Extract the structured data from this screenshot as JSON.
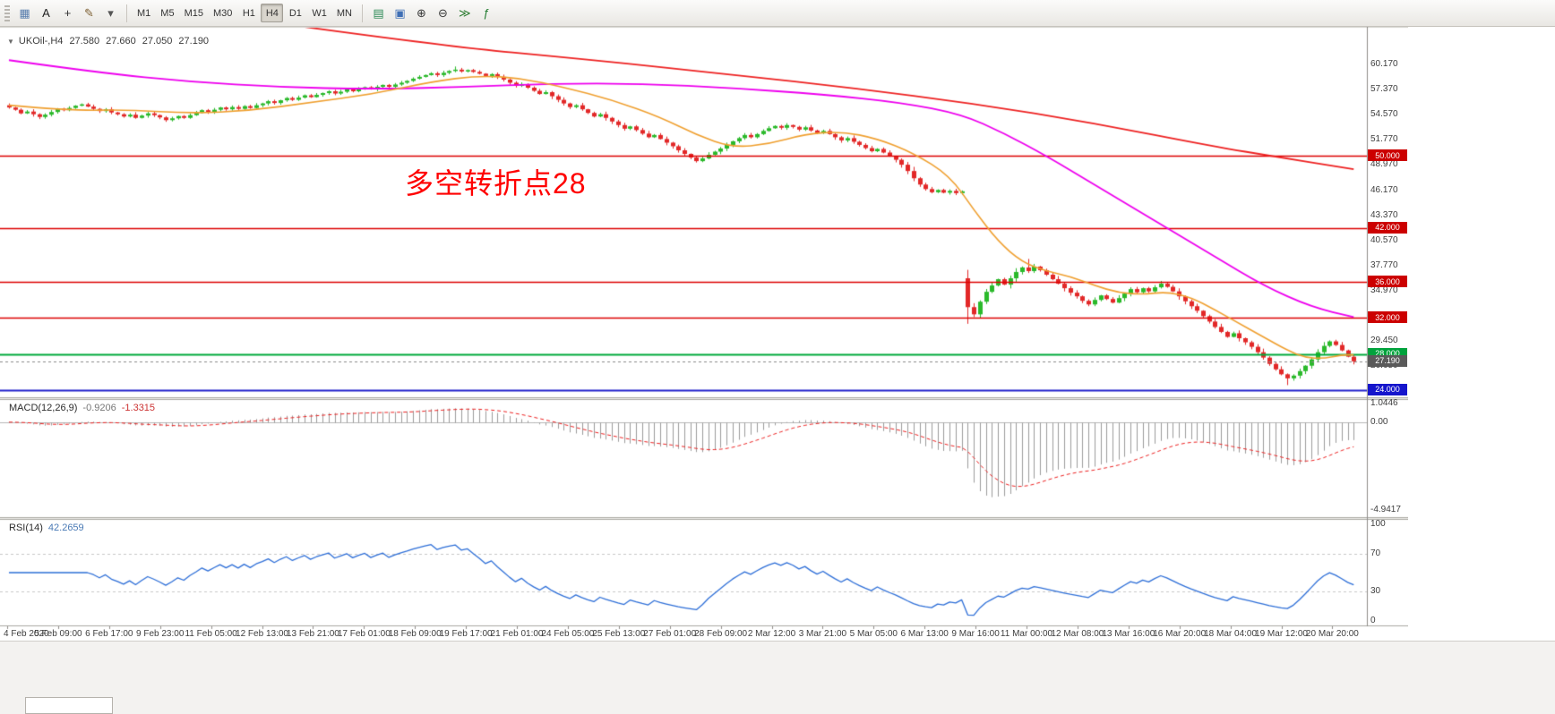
{
  "app": {
    "toolbar": {
      "left_icons": [
        {
          "name": "charts-list-icon",
          "glyph": "▦",
          "color": "#5a7fae"
        },
        {
          "name": "cursor-tool-icon",
          "glyph": "A",
          "color": "#1f1f1f"
        },
        {
          "name": "crosshair-tool-icon",
          "glyph": "+",
          "color": "#333333"
        },
        {
          "name": "draw-tools-icon",
          "glyph": "✎",
          "color": "#7a5c2e"
        },
        {
          "name": "dropdown-arrow-icon",
          "glyph": "▾",
          "color": "#555555"
        }
      ],
      "timeframes": [
        "M1",
        "M5",
        "M15",
        "M30",
        "H1",
        "H4",
        "D1",
        "W1",
        "MN"
      ],
      "active_timeframe": "H4",
      "right_icons": [
        {
          "name": "new-order-icon",
          "glyph": "▤",
          "color": "#2e8b57"
        },
        {
          "name": "tile-windows-icon",
          "glyph": "▣",
          "color": "#3f6fb5"
        },
        {
          "name": "zoom-in-icon",
          "glyph": "⊕",
          "color": "#3a3a3a"
        },
        {
          "name": "zoom-out-icon",
          "glyph": "⊖",
          "color": "#3a3a3a"
        },
        {
          "name": "auto-scroll-icon",
          "glyph": "≫",
          "color": "#2e7d32"
        },
        {
          "name": "indicators-icon",
          "glyph": "ƒ",
          "color": "#1f7a2e"
        }
      ]
    }
  },
  "chart": {
    "title": {
      "collapse_glyph": "▼",
      "symbol_period": "UKOil-,H4",
      "open": "27.580",
      "high": "27.660",
      "low": "27.050",
      "close": "27.190"
    },
    "annotation": {
      "text": "多空转折点28",
      "color": "#ff0000"
    },
    "price_axis": {
      "labels": [
        {
          "p": 60.17,
          "t": "60.170"
        },
        {
          "p": 57.37,
          "t": "57.370"
        },
        {
          "p": 54.57,
          "t": "54.570"
        },
        {
          "p": 51.77,
          "t": "51.770"
        },
        {
          "p": 48.97,
          "t": "48.970"
        },
        {
          "p": 46.17,
          "t": "46.170"
        },
        {
          "p": 43.37,
          "t": "43.370"
        },
        {
          "p": 40.57,
          "t": "40.570"
        },
        {
          "p": 37.77,
          "t": "37.770"
        },
        {
          "p": 34.97,
          "t": "34.970"
        },
        {
          "p": 29.45,
          "t": "29.450"
        },
        {
          "p": 26.65,
          "t": "26.650"
        }
      ],
      "badges": [
        {
          "p": 50.0,
          "t": "50.000",
          "bg": "#cc0000"
        },
        {
          "p": 42.0,
          "t": "42.000",
          "bg": "#cc0000"
        },
        {
          "p": 36.0,
          "t": "36.000",
          "bg": "#cc0000"
        },
        {
          "p": 32.0,
          "t": "32.000",
          "bg": "#cc0000"
        },
        {
          "p": 28.0,
          "t": "28.000",
          "bg": "#00a23c"
        },
        {
          "p": 27.19,
          "t": "27.190",
          "bg": "#5a5a5a"
        },
        {
          "p": 24.0,
          "t": "24.000",
          "bg": "#1515cc"
        }
      ]
    },
    "time_axis": {
      "labels": [
        "4 Feb 2020",
        "5 Feb 09:00",
        "6 Feb 17:00",
        "9 Feb 23:00",
        "11 Feb 05:00",
        "12 Feb 13:00",
        "13 Feb 21:00",
        "17 Feb 01:00",
        "18 Feb 09:00",
        "19 Feb 17:00",
        "21 Feb 01:00",
        "24 Feb 05:00",
        "25 Feb 13:00",
        "27 Feb 01:00",
        "28 Feb 09:00",
        "2 Mar 12:00",
        "3 Mar 21:00",
        "5 Mar 05:00",
        "6 Mar 13:00",
        "9 Mar 16:00",
        "11 Mar 00:00",
        "12 Mar 08:00",
        "13 Mar 16:00",
        "16 Mar 20:00",
        "18 Mar 04:00",
        "19 Mar 12:00",
        "20 Mar 20:00"
      ]
    },
    "indicators": {
      "macd": {
        "label": "MACD(12,26,9)",
        "value_main": "-0.9206",
        "value_signal": "-1.3315",
        "scale": [
          {
            "v": 1.0446,
            "t": "1.0446"
          },
          {
            "v": 0,
            "t": "0.00"
          },
          {
            "v": -4.9417,
            "t": "-4.9417"
          }
        ]
      },
      "rsi": {
        "label": "RSI(14)",
        "value": "42.2659",
        "scale": [
          {
            "v": 100,
            "t": "100"
          },
          {
            "v": 70,
            "t": "70"
          },
          {
            "v": 30,
            "t": "30"
          },
          {
            "v": 0,
            "t": "0"
          }
        ]
      }
    }
  },
  "chart_data": {
    "type": "candlestick",
    "symbol": "UKOil-",
    "timeframe": "H4",
    "current_bar": {
      "open": 27.58,
      "high": 27.66,
      "low": 27.05,
      "close": 27.19
    },
    "price_range": {
      "min": 23.2,
      "max": 64.2
    },
    "closes": [
      55.35,
      55.1,
      54.7,
      54.9,
      54.6,
      54.3,
      54.55,
      54.85,
      55.2,
      55.05,
      55.3,
      55.55,
      55.7,
      55.45,
      55.2,
      54.95,
      55.15,
      54.8,
      54.6,
      54.35,
      54.55,
      54.2,
      54.45,
      54.7,
      54.5,
      54.25,
      53.95,
      54.15,
      54.4,
      54.2,
      54.5,
      54.75,
      55.05,
      54.85,
      55.1,
      55.35,
      55.15,
      55.4,
      55.2,
      55.5,
      55.3,
      55.6,
      55.8,
      56.05,
      55.85,
      56.15,
      56.4,
      56.2,
      56.45,
      56.7,
      56.5,
      56.75,
      56.95,
      57.15,
      56.9,
      57.1,
      57.35,
      57.15,
      57.4,
      57.6,
      57.4,
      57.65,
      57.85,
      57.65,
      57.9,
      58.1,
      58.3,
      58.55,
      58.75,
      58.95,
      59.15,
      58.95,
      59.2,
      59.4,
      59.55,
      59.35,
      59.5,
      59.3,
      59.1,
      58.85,
      59.05,
      58.75,
      58.45,
      58.1,
      57.75,
      57.95,
      57.55,
      57.2,
      56.85,
      57.05,
      56.6,
      56.2,
      55.8,
      55.4,
      55.6,
      55.15,
      54.75,
      54.35,
      54.6,
      54.2,
      53.8,
      53.4,
      53.0,
      53.25,
      52.85,
      52.45,
      52.05,
      52.3,
      51.85,
      51.45,
      51.05,
      50.6,
      50.2,
      49.8,
      49.4,
      49.7,
      50.1,
      50.45,
      50.8,
      51.2,
      51.6,
      51.95,
      52.3,
      52.05,
      52.4,
      52.75,
      53.05,
      53.3,
      53.1,
      53.4,
      53.2,
      52.9,
      53.15,
      52.8,
      52.5,
      52.75,
      52.4,
      52.05,
      51.7,
      51.95,
      51.55,
      51.2,
      50.85,
      50.5,
      50.75,
      50.35,
      49.95,
      49.55,
      49.0,
      48.3,
      47.5,
      46.8,
      46.3,
      45.95,
      46.2,
      45.9,
      46.1,
      45.85,
      46.05,
      33.2,
      32.4,
      33.8,
      34.9,
      35.6,
      36.3,
      35.7,
      36.4,
      37.1,
      37.6,
      37.2,
      37.7,
      37.3,
      36.8,
      36.3,
      35.8,
      35.3,
      34.8,
      34.4,
      33.9,
      33.5,
      34.0,
      34.5,
      34.1,
      33.7,
      34.2,
      34.7,
      35.2,
      34.85,
      35.3,
      34.95,
      35.4,
      35.8,
      35.45,
      34.95,
      34.4,
      33.85,
      33.3,
      32.8,
      32.2,
      31.6,
      31.0,
      30.45,
      29.9,
      30.3,
      29.75,
      29.3,
      28.8,
      28.2,
      27.6,
      26.9,
      26.3,
      25.75,
      25.3,
      25.6,
      26.1,
      26.7,
      27.4,
      28.2,
      28.9,
      29.4,
      29.0,
      28.4,
      27.7,
      27.19
    ],
    "overrides": {
      "open": {
        "159": 36.4
      },
      "high": {
        "74": 59.9,
        "169": 38.55
      },
      "low": {
        "159": 31.35,
        "212": 24.55
      }
    },
    "candle_colors": {
      "up": "#2ab92a",
      "down": "#e22828"
    },
    "h_levels": [
      {
        "price": 50.0,
        "color": "#dd0000",
        "width": 1.3,
        "dash": false
      },
      {
        "price": 42.0,
        "color": "#dd0000",
        "width": 1.3,
        "dash": false
      },
      {
        "price": 36.0,
        "color": "#dd0000",
        "width": 1.3,
        "dash": false
      },
      {
        "price": 32.0,
        "color": "#dd0000",
        "width": 1.3,
        "dash": false
      },
      {
        "price": 28.0,
        "color": "#00aa3c",
        "width": 2,
        "dash": false
      },
      {
        "price": 24.0,
        "color": "#2020cc",
        "width": 2,
        "dash": false
      },
      {
        "price": 27.19,
        "color": "#8a8a8a",
        "width": 1,
        "dash": true
      }
    ],
    "moving_averages": [
      {
        "name": "ma-slow-red",
        "color": "#ee2222",
        "width": 1.8,
        "points": [
          [
            36,
            65.5
          ],
          [
            70,
            62.3
          ],
          [
            97,
            60.6
          ],
          [
            120,
            59.0
          ],
          [
            140,
            57.5
          ],
          [
            160,
            55.8
          ],
          [
            180,
            53.6
          ],
          [
            200,
            51.0
          ],
          [
            210,
            49.9
          ],
          [
            223,
            48.5
          ]
        ]
      },
      {
        "name": "ma-mid-magenta",
        "color": "#ee00ee",
        "width": 1.8,
        "points": [
          [
            0,
            60.6
          ],
          [
            15,
            59.2
          ],
          [
            30,
            58.2
          ],
          [
            45,
            57.6
          ],
          [
            60,
            57.4
          ],
          [
            75,
            57.6
          ],
          [
            90,
            58.0
          ],
          [
            105,
            58.0
          ],
          [
            120,
            57.5
          ],
          [
            135,
            56.8
          ],
          [
            148,
            55.9
          ],
          [
            158,
            54.6
          ],
          [
            165,
            52.5
          ],
          [
            172,
            50.0
          ],
          [
            180,
            46.8
          ],
          [
            190,
            42.8
          ],
          [
            200,
            38.8
          ],
          [
            208,
            35.6
          ],
          [
            216,
            33.2
          ],
          [
            223,
            32.1
          ]
        ]
      },
      {
        "name": "ma-fast-orange",
        "color": "#f0a030",
        "width": 1.6,
        "points": [
          [
            0,
            55.6
          ],
          [
            10,
            55.0
          ],
          [
            20,
            55.1
          ],
          [
            30,
            54.7
          ],
          [
            40,
            55.0
          ],
          [
            50,
            55.9
          ],
          [
            60,
            56.8
          ],
          [
            70,
            58.2
          ],
          [
            78,
            58.9
          ],
          [
            85,
            58.6
          ],
          [
            92,
            57.6
          ],
          [
            100,
            56.2
          ],
          [
            108,
            54.3
          ],
          [
            114,
            52.3
          ],
          [
            120,
            50.9
          ],
          [
            126,
            51.3
          ],
          [
            132,
            52.4
          ],
          [
            138,
            52.7
          ],
          [
            144,
            51.9
          ],
          [
            150,
            50.3
          ],
          [
            156,
            47.8
          ],
          [
            160,
            44.0
          ],
          [
            164,
            40.5
          ],
          [
            168,
            38.2
          ],
          [
            172,
            37.2
          ],
          [
            176,
            36.6
          ],
          [
            180,
            35.6
          ],
          [
            184,
            34.8
          ],
          [
            188,
            34.6
          ],
          [
            192,
            34.9
          ],
          [
            196,
            34.3
          ],
          [
            200,
            32.9
          ],
          [
            204,
            31.4
          ],
          [
            208,
            29.9
          ],
          [
            212,
            28.4
          ],
          [
            215,
            27.6
          ],
          [
            218,
            27.5
          ],
          [
            221,
            27.9
          ],
          [
            223,
            27.9
          ]
        ]
      }
    ],
    "macd": {
      "fast": 12,
      "slow": 26,
      "signal_period": 9,
      "range": {
        "min": -5.35,
        "max": 1.25
      },
      "histogram_color": "#9b9b9b",
      "signal_color": "#ee2222",
      "zero_line_color": "#b8b8b8"
    },
    "rsi": {
      "period": 14,
      "range": {
        "min": -5,
        "max": 105
      },
      "line_color": "#2e6fd8",
      "levels": [
        70,
        30
      ],
      "level_color": "#c8c8c8"
    }
  }
}
